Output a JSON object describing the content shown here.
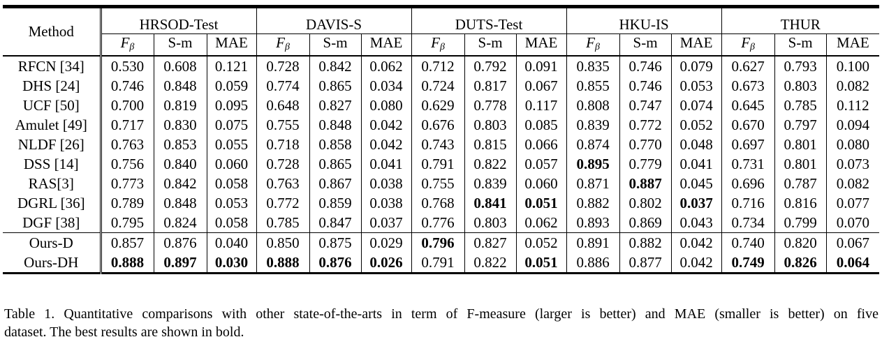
{
  "table": {
    "method_header": "Method",
    "datasets": [
      "HRSOD-Test",
      "DAVIS-S",
      "DUTS-Test",
      "HKU-IS",
      "THUR"
    ],
    "metric_symbol": "F",
    "metric_subscript": "β",
    "metrics": [
      "F_β",
      "S-m",
      "MAE"
    ],
    "group1": [
      {
        "method": "RFCN [34]",
        "values": [
          "0.530",
          "0.608",
          "0.121",
          "0.728",
          "0.842",
          "0.062",
          "0.712",
          "0.792",
          "0.091",
          "0.835",
          "0.746",
          "0.079",
          "0.627",
          "0.793",
          "0.100"
        ],
        "bold": []
      },
      {
        "method": "DHS [24]",
        "values": [
          "0.746",
          "0.848",
          "0.059",
          "0.774",
          "0.865",
          "0.034",
          "0.724",
          "0.817",
          "0.067",
          "0.855",
          "0.746",
          "0.053",
          "0.673",
          "0.803",
          "0.082"
        ],
        "bold": []
      },
      {
        "method": "UCF [50]",
        "values": [
          "0.700",
          "0.819",
          "0.095",
          "0.648",
          "0.827",
          "0.080",
          "0.629",
          "0.778",
          "0.117",
          "0.808",
          "0.747",
          "0.074",
          "0.645",
          "0.785",
          "0.112"
        ],
        "bold": []
      },
      {
        "method": "Amulet [49]",
        "values": [
          "0.717",
          "0.830",
          "0.075",
          "0.755",
          "0.848",
          "0.042",
          "0.676",
          "0.803",
          "0.085",
          "0.839",
          "0.772",
          "0.052",
          "0.670",
          "0.797",
          "0.094"
        ],
        "bold": []
      },
      {
        "method": "NLDF [26]",
        "values": [
          "0.763",
          "0.853",
          "0.055",
          "0.718",
          "0.858",
          "0.042",
          "0.743",
          "0.815",
          "0.066",
          "0.874",
          "0.770",
          "0.048",
          "0.697",
          "0.801",
          "0.080"
        ],
        "bold": []
      },
      {
        "method": "DSS [14]",
        "values": [
          "0.756",
          "0.840",
          "0.060",
          "0.728",
          "0.865",
          "0.041",
          "0.791",
          "0.822",
          "0.057",
          "0.895",
          "0.779",
          "0.041",
          "0.731",
          "0.801",
          "0.073"
        ],
        "bold": [
          9
        ]
      },
      {
        "method": "RAS[3]",
        "values": [
          "0.773",
          "0.842",
          "0.058",
          "0.763",
          "0.867",
          "0.038",
          "0.755",
          "0.839",
          "0.060",
          "0.871",
          "0.887",
          "0.045",
          "0.696",
          "0.787",
          "0.082"
        ],
        "bold": [
          10
        ]
      },
      {
        "method": "DGRL [36]",
        "values": [
          "0.789",
          "0.848",
          "0.053",
          "0.772",
          "0.859",
          "0.038",
          "0.768",
          "0.841",
          "0.051",
          "0.882",
          "0.802",
          "0.037",
          "0.716",
          "0.816",
          "0.077"
        ],
        "bold": [
          7,
          8,
          11
        ]
      },
      {
        "method": "DGF [38]",
        "values": [
          "0.795",
          "0.824",
          "0.058",
          "0.785",
          "0.847",
          "0.037",
          "0.776",
          "0.803",
          "0.062",
          "0.893",
          "0.869",
          "0.043",
          "0.734",
          "0.799",
          "0.070"
        ],
        "bold": []
      }
    ],
    "group2": [
      {
        "method": "Ours-D",
        "values": [
          "0.857",
          "0.876",
          "0.040",
          "0.850",
          "0.875",
          "0.029",
          "0.796",
          "0.827",
          "0.052",
          "0.891",
          "0.882",
          "0.042",
          "0.740",
          "0.820",
          "0.067"
        ],
        "bold": [
          6
        ]
      },
      {
        "method": "Ours-DH",
        "values": [
          "0.888",
          "0.897",
          "0.030",
          "0.888",
          "0.876",
          "0.026",
          "0.791",
          "0.822",
          "0.051",
          "0.886",
          "0.877",
          "0.042",
          "0.749",
          "0.826",
          "0.064"
        ],
        "bold": [
          0,
          1,
          2,
          3,
          4,
          5,
          8,
          12,
          13,
          14
        ]
      }
    ]
  },
  "caption": {
    "line1": "Table 1. Quantitative comparisons with other state-of-the-arts in term of F-measure (larger is better) and MAE (smaller is better) on five",
    "line2": "dataset. The best results are shown in bold."
  }
}
